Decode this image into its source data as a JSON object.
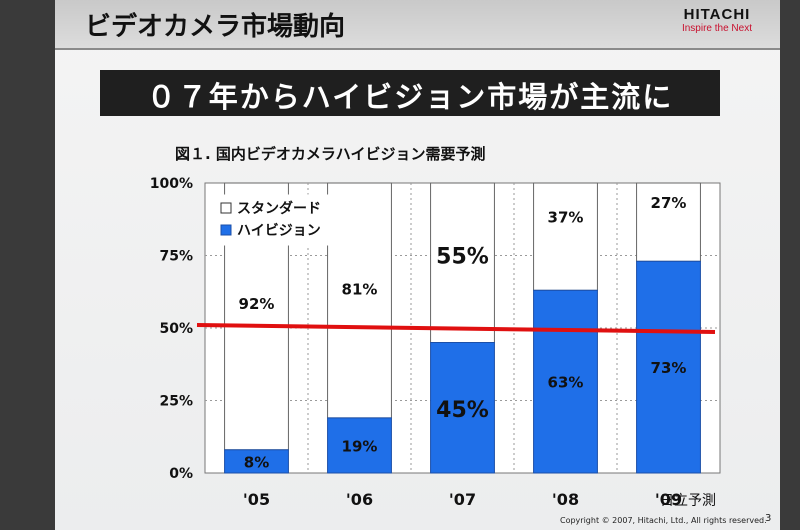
{
  "slide": {
    "title": "ビデオカメラ市場動向",
    "headline": "０７年からハイビジョン市場が主流に",
    "logo": {
      "name": "HITACHI",
      "tagline": "Inspire the Next"
    },
    "forecast_note": "日立予測",
    "copyright": "Copyright © 2007, Hitachi, Ltd., All rights reserved.",
    "page_number": "3"
  },
  "chart_data": {
    "type": "bar",
    "stacked": true,
    "title": "図１. 国内ビデオカメラハイビジョン需要予測",
    "categories": [
      "'05",
      "'06",
      "'07",
      "'08",
      "'09"
    ],
    "series": [
      {
        "name": "ハイビジョン",
        "values": [
          8,
          19,
          45,
          63,
          73
        ],
        "labels": [
          "8%",
          "19%",
          "45%",
          "63%",
          "73%"
        ],
        "color": "#1f6fe8"
      },
      {
        "name": "スタンダード",
        "values": [
          92,
          81,
          55,
          37,
          27
        ],
        "labels": [
          "92%",
          "81%",
          "55%",
          "37%",
          "27%"
        ],
        "color": "#ffffff"
      }
    ],
    "yticks": [
      "0%",
      "25%",
      "50%",
      "75%",
      "100%"
    ],
    "ylim": [
      0,
      100
    ],
    "reference_line": 50,
    "reference_color": "#e01010",
    "legend_position": "top-left",
    "grid": true
  }
}
